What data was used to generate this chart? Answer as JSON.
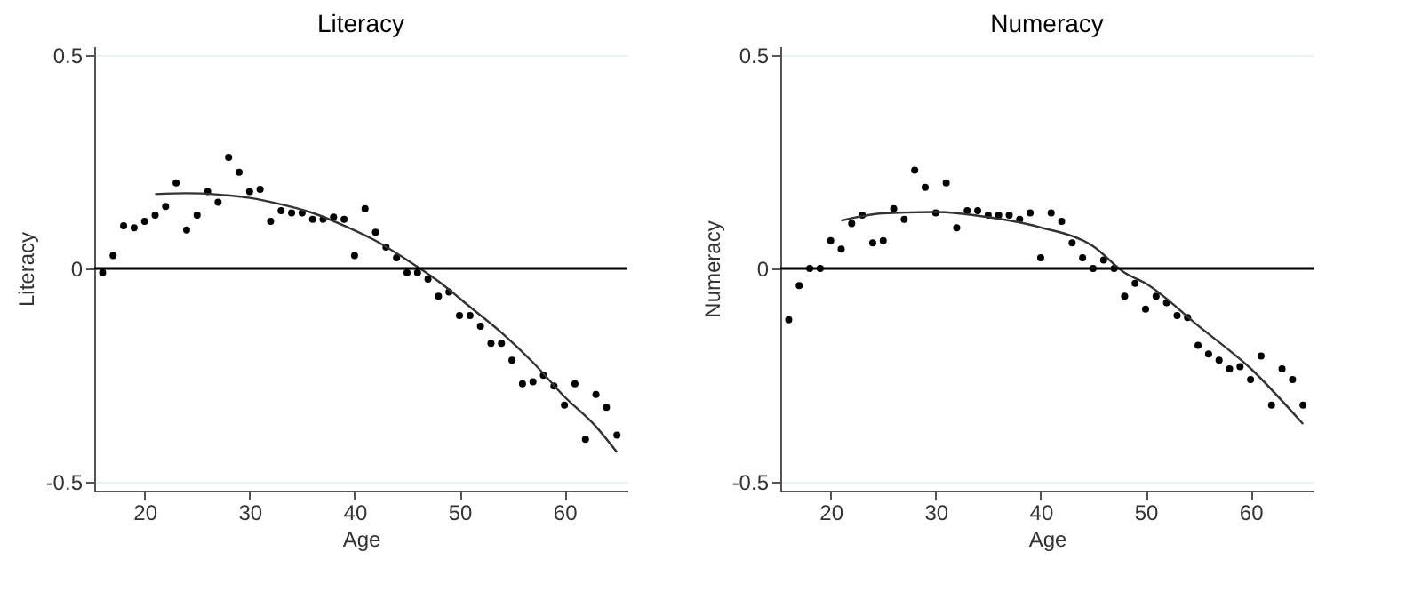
{
  "chart_data": [
    {
      "type": "scatter",
      "title": "Literacy",
      "xlabel": "Age",
      "ylabel": "Literacy",
      "marker": "circle",
      "grid": "y",
      "x": [
        16,
        17,
        18,
        19,
        20,
        21,
        22,
        23,
        24,
        25,
        26,
        27,
        28,
        29,
        30,
        31,
        32,
        33,
        34,
        35,
        36,
        37,
        38,
        39,
        40,
        41,
        42,
        43,
        44,
        45,
        46,
        47,
        48,
        49,
        50,
        51,
        52,
        53,
        54,
        55,
        56,
        57,
        58,
        59,
        60,
        61,
        62,
        63,
        64,
        65
      ],
      "series": [
        {
          "color": "#000000",
          "values": [
            -0.01,
            0.03,
            0.1,
            0.095,
            0.11,
            0.125,
            0.145,
            0.2,
            0.09,
            0.125,
            0.18,
            0.155,
            0.26,
            0.225,
            0.18,
            0.185,
            0.11,
            0.135,
            0.13,
            0.13,
            0.115,
            0.115,
            0.12,
            0.115,
            0.03,
            0.14,
            0.085,
            0.05,
            0.025,
            -0.01,
            -0.01,
            -0.025,
            -0.065,
            -0.055,
            -0.11,
            -0.11,
            -0.135,
            -0.175,
            -0.175,
            -0.215,
            -0.27,
            -0.265,
            -0.25,
            -0.275,
            -0.32,
            -0.27,
            -0.4,
            -0.295,
            -0.325,
            -0.39
          ]
        },
        {
          "type": "line",
          "marker": "none",
          "color": "#333333",
          "x": [
            21,
            24,
            27,
            30,
            33,
            36,
            39,
            42,
            45,
            48,
            51,
            54,
            57,
            60,
            63,
            65
          ],
          "values": [
            0.174,
            0.176,
            0.173,
            0.165,
            0.15,
            0.13,
            0.1,
            0.065,
            0.02,
            -0.03,
            -0.09,
            -0.15,
            -0.22,
            -0.3,
            -0.37,
            -0.43
          ]
        }
      ],
      "xlim": [
        15.2,
        66
      ],
      "xticks": [
        20,
        30,
        40,
        50,
        60
      ],
      "ylim": [
        -0.52,
        0.52
      ],
      "yticks": [
        -0.5,
        0,
        0.5
      ],
      "ref_lines": [
        {
          "axis": "y",
          "value": 0,
          "color": "#000000"
        }
      ]
    },
    {
      "type": "scatter",
      "title": "Numeracy",
      "xlabel": "Age",
      "ylabel": "Numeracy",
      "marker": "circle",
      "grid": "y",
      "x": [
        16,
        17,
        18,
        19,
        20,
        21,
        22,
        23,
        24,
        25,
        26,
        27,
        28,
        29,
        30,
        31,
        32,
        33,
        34,
        35,
        36,
        37,
        38,
        39,
        40,
        41,
        42,
        43,
        44,
        45,
        46,
        47,
        48,
        49,
        50,
        51,
        52,
        53,
        54,
        55,
        56,
        57,
        58,
        59,
        60,
        61,
        62,
        63,
        64,
        65
      ],
      "series": [
        {
          "color": "#000000",
          "values": [
            -0.12,
            -0.04,
            0,
            0,
            0.065,
            0.045,
            0.105,
            0.125,
            0.06,
            0.065,
            0.14,
            0.115,
            0.23,
            0.19,
            0.13,
            0.2,
            0.095,
            0.135,
            0.135,
            0.125,
            0.125,
            0.125,
            0.115,
            0.13,
            0.025,
            0.13,
            0.11,
            0.06,
            0.025,
            0,
            0.02,
            0,
            -0.065,
            -0.035,
            -0.095,
            -0.065,
            -0.08,
            -0.11,
            -0.115,
            -0.18,
            -0.2,
            -0.215,
            -0.235,
            -0.23,
            -0.26,
            -0.205,
            -0.32,
            -0.235,
            -0.26,
            -0.32
          ]
        },
        {
          "type": "line",
          "marker": "none",
          "color": "#333333",
          "x": [
            21,
            25,
            30,
            35,
            40,
            45,
            48,
            50,
            55,
            60,
            65
          ],
          "values": [
            0.112,
            0.129,
            0.132,
            0.12,
            0.096,
            0.052,
            -0.01,
            -0.035,
            -0.134,
            -0.234,
            -0.364
          ]
        }
      ],
      "xlim": [
        15.2,
        66
      ],
      "xticks": [
        20,
        30,
        40,
        50,
        60
      ],
      "ylim": [
        -0.52,
        0.52
      ],
      "yticks": [
        -0.5,
        0,
        0.5
      ],
      "ref_lines": [
        {
          "axis": "y",
          "value": 0,
          "color": "#000000"
        }
      ]
    }
  ]
}
